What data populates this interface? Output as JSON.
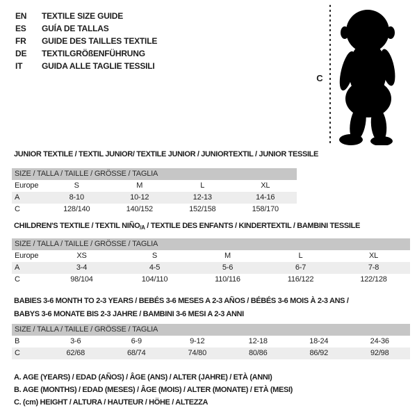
{
  "languages": [
    {
      "code": "EN",
      "title": "TEXTILE SIZE GUIDE"
    },
    {
      "code": "ES",
      "title": "GUÍA DE TALLAS"
    },
    {
      "code": "FR",
      "title": "GUIDE DES TAILLES TEXTILE"
    },
    {
      "code": "DE",
      "title": "TEXTILGRÖßENFÜHRUNG"
    },
    {
      "code": "IT",
      "title": "GUIDA ALLE TAGLIE TESSILI"
    }
  ],
  "figure": {
    "height_label": "C",
    "silhouette": "toddler-silhouette"
  },
  "tables": [
    {
      "title": "JUNIOR TEXTILE / TEXTIL JUNIOR/ TEXTILE JUNIOR / JUNIORTEXTIL / JUNIOR TESSILE",
      "size_header": "SIZE / TALLA / TAILLE / GRÖSSE / TAGLIA",
      "rows": [
        {
          "label": "Europe",
          "values": [
            "S",
            "M",
            "L",
            "XL"
          ],
          "shaded": false
        },
        {
          "label": "A",
          "values": [
            "8-10",
            "10-12",
            "12-13",
            "14-16"
          ],
          "shaded": true
        },
        {
          "label": "C",
          "values": [
            "128/140",
            "140/152",
            "152/158",
            "158/170"
          ],
          "shaded": false
        }
      ]
    },
    {
      "title_prefix": "CHILDREN'S TEXTILE / TEXTIL NIÑO",
      "title_sub": "/A",
      "title_suffix": " / TEXTILE DES ENFANTS / KINDERTEXTIL / BAMBINI TESSILE",
      "size_header": "SIZE / TALLA / TAILLE / GRÖSSE / TAGLIA",
      "rows": [
        {
          "label": "Europe",
          "values": [
            "XS",
            "S",
            "M",
            "L",
            "XL"
          ],
          "shaded": false
        },
        {
          "label": "A",
          "values": [
            "3-4",
            "4-5",
            "5-6",
            "6-7",
            "7-8"
          ],
          "shaded": true
        },
        {
          "label": "C",
          "values": [
            "98/104",
            "104/110",
            "110/116",
            "116/122",
            "122/128"
          ],
          "shaded": false
        }
      ]
    },
    {
      "title_lines": [
        "BABIES 3-6 MONTH TO 2-3 YEARS / BEBÉS 3-6 MESES A 2-3 AÑOS / BÉBÉS 3-6 MOIS À 2-3 ANS /",
        "BABYS 3-6 MONATE BIS 2-3 JAHRE / BAMBINI 3-6 MESI A 2-3 ANNI"
      ],
      "size_header": "SIZE / TALLA / TAILLE / GRÖSSE / TAGLIA",
      "rows": [
        {
          "label": "B",
          "values": [
            "3-6",
            "6-9",
            "9-12",
            "12-18",
            "18-24",
            "24-36"
          ],
          "shaded": false
        },
        {
          "label": "C",
          "values": [
            "62/68",
            "68/74",
            "74/80",
            "80/86",
            "86/92",
            "92/98"
          ],
          "shaded": true
        }
      ]
    }
  ],
  "footnotes": [
    "A. AGE (YEARS) / EDAD (AÑOS) / ÂGE (ANS) / ALTER (JAHRE) / ETÀ (ANNI)",
    "B. AGE (MONTHS) / EDAD (MESES) / ÂGE (MOIS) / ALTER (MONATE) / ETÀ (MESI)",
    "C. (cm) HEIGHT / ALTURA / HAUTEUR / HÖHE / ALTEZZA"
  ],
  "colors": {
    "header_bar": "#c6c6c6",
    "shaded_row": "#ededed",
    "text": "#1d1d1d"
  }
}
